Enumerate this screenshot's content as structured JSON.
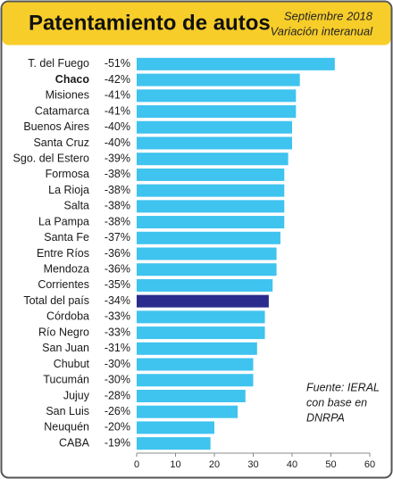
{
  "chart_data": {
    "type": "barh",
    "title": "Patentamiento de autos",
    "subtitle": [
      "Septiembre 2018",
      "Variación interanual"
    ],
    "categories": [
      "T. del Fuego",
      "Chaco",
      "Misiones",
      "Catamarca",
      "Buenos Aires",
      "Santa Cruz",
      "Sgo. del Estero",
      "Formosa",
      "La Rioja",
      "Salta",
      "La Pampa",
      "Santa Fe",
      "Entre Ríos",
      "Mendoza",
      "Corrientes",
      "Total del país",
      "Córdoba",
      "Río Negro",
      "San Juan",
      "Chubut",
      "Tucumán",
      "Jujuy",
      "San Luis",
      "Neuquén",
      "CABA"
    ],
    "values": [
      51,
      42,
      41,
      41,
      40,
      40,
      39,
      38,
      38,
      38,
      38,
      37,
      36,
      36,
      35,
      34,
      33,
      33,
      31,
      30,
      30,
      28,
      26,
      20,
      19
    ],
    "value_labels": [
      "-51%",
      "-42%",
      "-41%",
      "-41%",
      "-40%",
      "-40%",
      "-39%",
      "-38%",
      "-38%",
      "-38%",
      "-38%",
      "-37%",
      "-36%",
      "-36%",
      "-35%",
      "-34%",
      "-33%",
      "-33%",
      "-31%",
      "-30%",
      "-30%",
      "-28%",
      "-26%",
      "-20%",
      "-19%"
    ],
    "color": "#3fc3ef",
    "highlight_index": 15,
    "highlight_color": "#2a2b8c",
    "bold_index": 1,
    "xlim": [
      0,
      60
    ],
    "xticks": [
      0,
      10,
      20,
      30,
      40,
      50,
      60
    ],
    "annotation": [
      "Fuente: IERAL",
      "con base en",
      "DNRPA"
    ]
  }
}
